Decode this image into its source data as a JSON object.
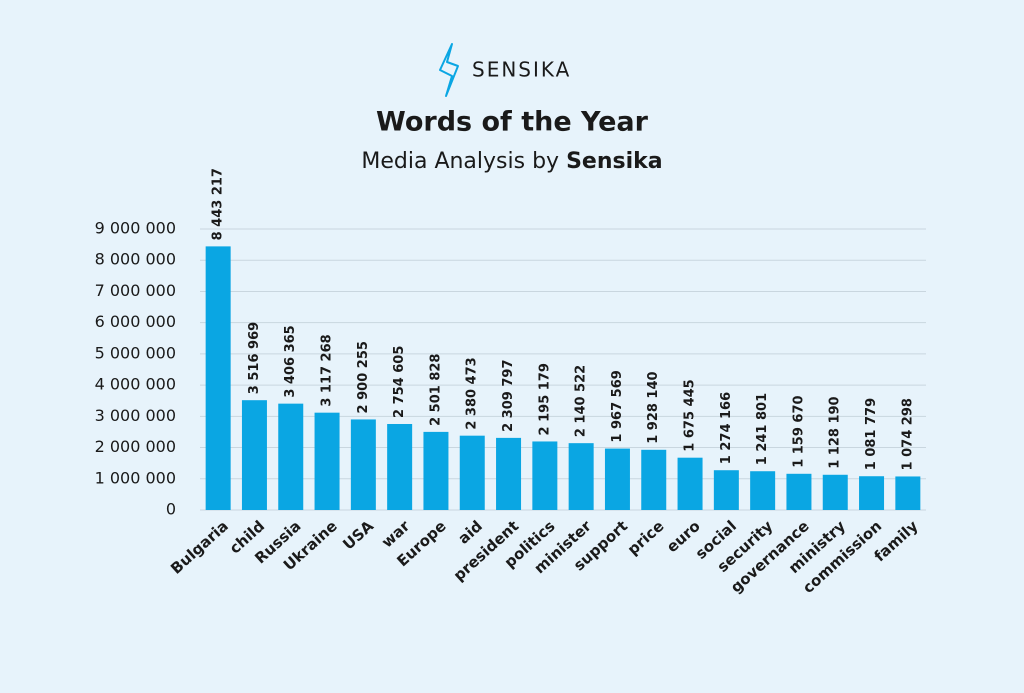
{
  "logo": "SENSIKA",
  "chart_data": {
    "type": "bar",
    "title": "Words of the Year",
    "subtitle": "Media Analysis by",
    "subtitle_emphasis": "Sensika",
    "categories": [
      "Bulgaria",
      "child",
      "Russia",
      "Ukraine",
      "USA",
      "war",
      "Europe",
      "aid",
      "president",
      "politics",
      "minister",
      "support",
      "price",
      "euro",
      "social",
      "security",
      "governance",
      "ministry",
      "commission",
      "family"
    ],
    "values": [
      8443217,
      3516969,
      3406365,
      3117268,
      2900255,
      2754605,
      2501828,
      2380473,
      2309797,
      2195179,
      2140522,
      1967569,
      1928140,
      1675445,
      1274166,
      1241801,
      1159670,
      1128190,
      1081779,
      1074298
    ],
    "value_labels": [
      "8 443 217",
      "3 516 969",
      "3 406 365",
      "3 117 268",
      "2 900 255",
      "2 754 605",
      "2 501 828",
      "2 380 473",
      "2 309 797",
      "2 195 179",
      "2 140 522",
      "1 967 569",
      "1 928 140",
      "1 675 445",
      "1 274 166",
      "1 241 801",
      "1 159 670",
      "1 128 190",
      "1 081 779",
      "1 074 298"
    ],
    "color": "#0aa6e3",
    "ylim": [
      0,
      9000000
    ],
    "yticks": [
      0,
      {
        "value": 1000000,
        "label": "1 000 000"
      },
      {
        "value": 2000000,
        "label": "2 000 000"
      },
      {
        "value": 3000000,
        "label": "3 000 000"
      },
      {
        "value": 4000000,
        "label": "4 000 000"
      },
      {
        "value": 5000000,
        "label": "5 000 000"
      },
      {
        "value": 6000000,
        "label": "6 000 000"
      },
      {
        "value": 7000000,
        "label": "7 000 000"
      },
      {
        "value": 8000000,
        "label": "8 000 000"
      },
      {
        "value": 9000000,
        "label": "9 000 000"
      }
    ],
    "grid": true
  }
}
